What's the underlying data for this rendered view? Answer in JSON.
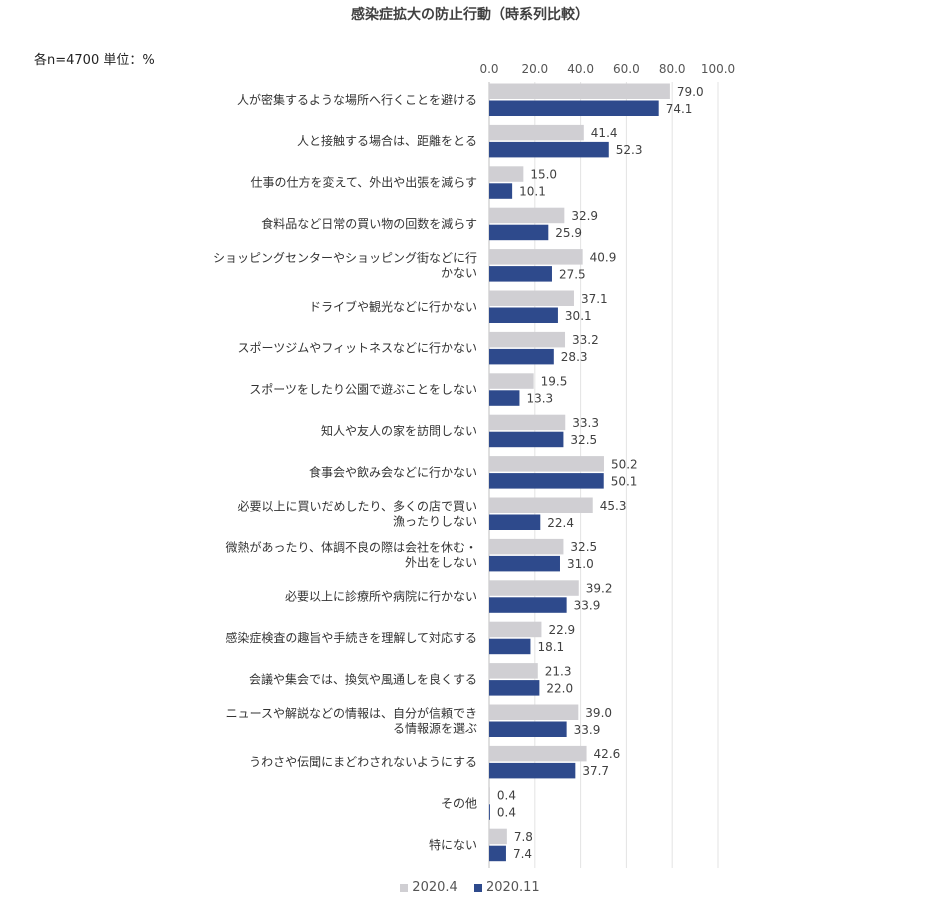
{
  "chart_data": {
    "type": "bar",
    "orientation": "horizontal",
    "title": "感染症拡大の防止行動（時系列比較）",
    "note": "各n=4700  単位：%",
    "xlim": [
      0,
      100
    ],
    "ticks": [
      "0.0",
      "20.0",
      "40.0",
      "60.0",
      "80.0",
      "100.0"
    ],
    "tick_values": [
      0,
      20,
      40,
      60,
      80,
      100
    ],
    "grid": true,
    "legend_position": "bottom",
    "categories": [
      [
        "人が密集するような場所へ行くことを避ける"
      ],
      [
        "人と接触する場合は、距離をとる"
      ],
      [
        "仕事の仕方を変えて、外出や出張を減らす"
      ],
      [
        "食料品など日常の買い物の回数を減らす"
      ],
      [
        "ショッピングセンターやショッピング街などに行",
        "かない"
      ],
      [
        "ドライブや観光などに行かない"
      ],
      [
        "スポーツジムやフィットネスなどに行かない"
      ],
      [
        "スポーツをしたり公園で遊ぶことをしない"
      ],
      [
        "知人や友人の家を訪問しない"
      ],
      [
        "食事会や飲み会などに行かない"
      ],
      [
        "必要以上に買いだめしたり、多くの店で買い",
        "漁ったりしない"
      ],
      [
        "微熱があったり、体調不良の際は会社を休む・",
        "外出をしない"
      ],
      [
        "必要以上に診療所や病院に行かない"
      ],
      [
        "感染症検査の趣旨や手続きを理解して対応する"
      ],
      [
        "会議や集会では、換気や風通しを良くする"
      ],
      [
        "ニュースや解説などの情報は、自分が信頼でき",
        "る情報源を選ぶ"
      ],
      [
        "うわさや伝聞にまどわされないようにする"
      ],
      [
        "その他"
      ],
      [
        "特にない"
      ]
    ],
    "series": [
      {
        "name": "2020.4",
        "color": "#d0cfd3",
        "values": [
          79.0,
          41.4,
          15.0,
          32.9,
          40.9,
          37.1,
          33.2,
          19.5,
          33.3,
          50.2,
          45.3,
          32.5,
          39.2,
          22.9,
          21.3,
          39.0,
          42.6,
          0.4,
          7.8
        ],
        "labels": [
          "79.0",
          "41.4",
          "15.0",
          "32.9",
          "40.9",
          "37.1",
          "33.2",
          "19.5",
          "33.3",
          "50.2",
          "45.3",
          "32.5",
          "39.2",
          "22.9",
          "21.3",
          "39.0",
          "42.6",
          "0.4",
          "7.8"
        ]
      },
      {
        "name": "2020.11",
        "color": "#2e4a8c",
        "values": [
          74.1,
          52.3,
          10.1,
          25.9,
          27.5,
          30.1,
          28.3,
          13.3,
          32.5,
          50.1,
          22.4,
          31.0,
          33.9,
          18.1,
          22.0,
          33.9,
          37.7,
          0.4,
          7.4
        ],
        "labels": [
          "74.1",
          "52.3",
          "10.1",
          "25.9",
          "27.5",
          "30.1",
          "28.3",
          "13.3",
          "32.5",
          "50.1",
          "22.4",
          "31.0",
          "33.9",
          "18.1",
          "22.0",
          "33.9",
          "37.7",
          "0.4",
          "7.4"
        ]
      }
    ]
  }
}
